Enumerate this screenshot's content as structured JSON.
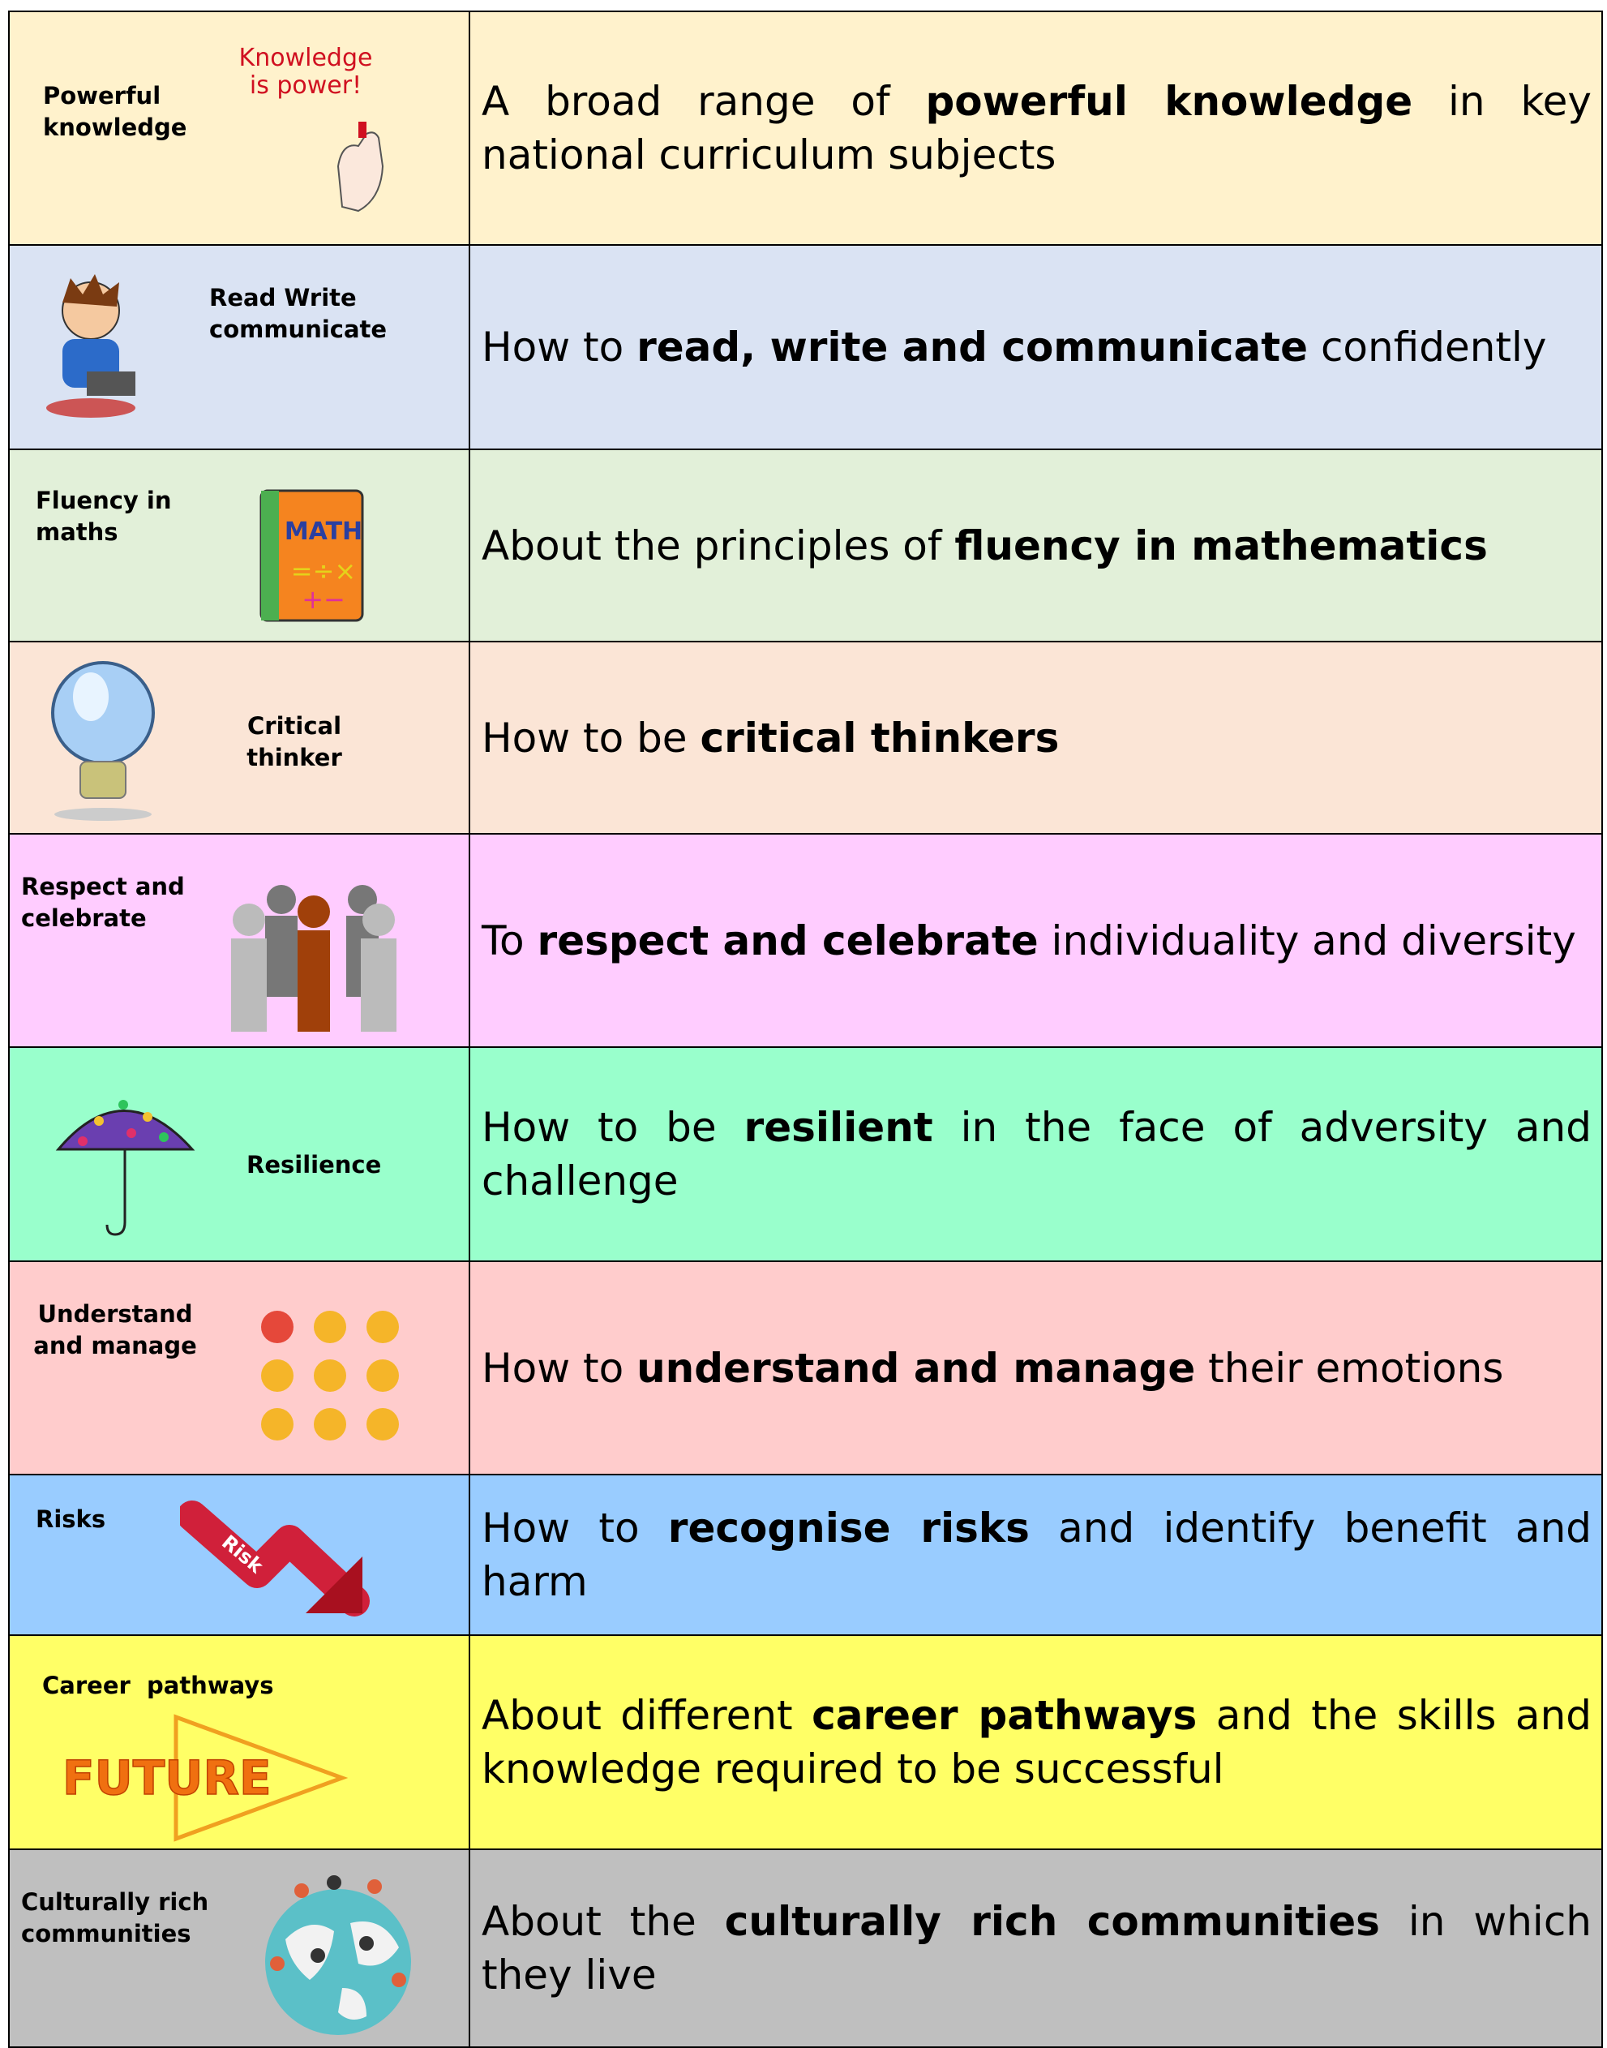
{
  "rows": [
    {
      "label": "Powerful knowledge",
      "icon_text": "Knowledge is power!",
      "color": "#fff2cc",
      "description": [
        {
          "text": "A broad range of ",
          "bold": false
        },
        {
          "text": "powerful knowledge",
          "bold": true
        },
        {
          "text": " in key national curriculum subjects",
          "bold": false
        }
      ]
    },
    {
      "label": "Read Write communicate",
      "color": "#dae3f3",
      "description": [
        {
          "text": "How to ",
          "bold": false
        },
        {
          "text": "read, write and communicate",
          "bold": true
        },
        {
          "text": " confidently",
          "bold": false
        }
      ]
    },
    {
      "label": "Fluency in maths",
      "icon_text": "MATH",
      "color": "#e2f0d9",
      "description": [
        {
          "text": "About the principles of ",
          "bold": false
        },
        {
          "text": "fluency in mathematics",
          "bold": true
        }
      ]
    },
    {
      "label": "Critical thinker",
      "color": "#fbe5d6",
      "description": [
        {
          "text": "How to be ",
          "bold": false
        },
        {
          "text": "critical thinkers",
          "bold": true
        }
      ]
    },
    {
      "label": "Respect and celebrate",
      "color": "#ffccff",
      "description": [
        {
          "text": "To ",
          "bold": false
        },
        {
          "text": "respect and celebrate",
          "bold": true
        },
        {
          "text": " individuality and diversity",
          "bold": false
        }
      ]
    },
    {
      "label": "Resilience",
      "color": "#99ffcc",
      "description": [
        {
          "text": "How to be ",
          "bold": false
        },
        {
          "text": "resilient",
          "bold": true
        },
        {
          "text": " in the face of adversity and challenge",
          "bold": false
        }
      ]
    },
    {
      "label": "Understand and manage",
      "color": "#ffcccc",
      "description": [
        {
          "text": "How to ",
          "bold": false
        },
        {
          "text": "understand and manage",
          "bold": true
        },
        {
          "text": " their emotions",
          "bold": false
        }
      ]
    },
    {
      "label": "Risks",
      "icon_text": "Risk",
      "color": "#99ccff",
      "description": [
        {
          "text": "How to ",
          "bold": false
        },
        {
          "text": "recognise risks",
          "bold": true
        },
        {
          "text": " and identify benefit and harm",
          "bold": false
        }
      ]
    },
    {
      "label": "Career  pathways",
      "icon_text": "FUTURE",
      "color": "#ffff66",
      "description": [
        {
          "text": "About different ",
          "bold": false
        },
        {
          "text": "career pathways",
          "bold": true
        },
        {
          "text": " and the skills and knowledge required to be  successful",
          "bold": false
        }
      ]
    },
    {
      "label": "Culturally rich communities",
      "color": "#bfbfbf",
      "description": [
        {
          "text": "About the ",
          "bold": false
        },
        {
          "text": "culturally rich communities",
          "bold": true
        },
        {
          "text": " in which they live",
          "bold": false
        }
      ]
    }
  ]
}
